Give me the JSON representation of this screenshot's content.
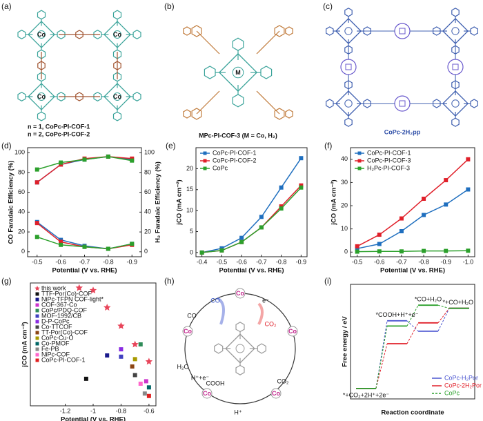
{
  "figure": {
    "panels": [
      "(a)",
      "(b)",
      "(c)",
      "(d)",
      "(e)",
      "(f)",
      "(g)",
      "(h)",
      "(i)"
    ],
    "a": {
      "metal": "Co",
      "captions": [
        "n = 1, CoPc-PI-COF-1",
        "n = 2, CoPc-PI-COF-2"
      ]
    },
    "b": {
      "metal": "M",
      "caption": "MPc-PI-COF-3 (M = Co, H₂)"
    },
    "c": {
      "caption": "CoPc-2H₂pp"
    },
    "h": {
      "metal": "Co",
      "labels": [
        "CO",
        "e⁻",
        "CO₂",
        "H⁺+e⁻",
        "H₂O",
        "H⁺",
        "COOH",
        "CO₂",
        "CO"
      ]
    }
  },
  "chart_data": [
    {
      "type": "line",
      "x_label": "Potential (V vs. RHE)",
      "y_label": "CO Faradaic Efficiency (%)",
      "y2_label": "H₂ Faradaic Efficiency (%)",
      "x": [
        -0.5,
        -0.6,
        -0.7,
        -0.8,
        -0.9
      ],
      "xlim": [
        -0.46,
        -0.94
      ],
      "xticks": [
        -0.5,
        -0.6,
        -0.7,
        -0.8,
        -0.9
      ],
      "ylim": [
        -5,
        105
      ],
      "yticks": [
        0,
        20,
        40,
        60,
        80,
        100
      ],
      "y2lim": [
        -5,
        105
      ],
      "y2ticks": [
        0,
        20,
        40,
        60,
        80,
        100
      ],
      "series": [
        {
          "color": "#1f6fbf",
          "values": [
            70,
            88,
            93,
            96,
            93
          ]
        },
        {
          "color": "#e0202a",
          "values": [
            70,
            88,
            94,
            96,
            94
          ]
        },
        {
          "color": "#2ca02c",
          "values": [
            83,
            90,
            93,
            96,
            92
          ]
        },
        {
          "color": "#1f6fbf",
          "axis": "y2",
          "values": [
            30,
            12,
            6,
            3,
            8
          ]
        },
        {
          "color": "#e0202a",
          "axis": "y2",
          "values": [
            29,
            10,
            5,
            3,
            7
          ]
        },
        {
          "color": "#2ca02c",
          "axis": "y2",
          "values": [
            15,
            7,
            5,
            3,
            8
          ]
        }
      ]
    },
    {
      "type": "line",
      "x_label": "Potential (V vs. RHE)",
      "y_label": "jCO (mA cm⁻²)",
      "legend": "upper left",
      "x": [
        -0.4,
        -0.5,
        -0.6,
        -0.7,
        -0.8,
        -0.9
      ],
      "xlim": [
        -0.37,
        -0.93
      ],
      "xticks": [
        -0.4,
        -0.5,
        -0.6,
        -0.7,
        -0.8,
        -0.9
      ],
      "ylim": [
        -1,
        25
      ],
      "yticks": [
        0,
        5,
        10,
        15,
        20
      ],
      "series": [
        {
          "name": "CoPc-PI-COF-1",
          "color": "#1f6fbf",
          "values": [
            0,
            1,
            3.5,
            8.5,
            15.5,
            22.5
          ]
        },
        {
          "name": "CoPc-PI-COF-2",
          "color": "#e0202a",
          "values": [
            0,
            0.5,
            2.5,
            6,
            11,
            16
          ]
        },
        {
          "name": "CoPc",
          "color": "#2ca02c",
          "values": [
            0,
            0.5,
            2.5,
            6,
            10.5,
            15.5
          ]
        }
      ]
    },
    {
      "type": "line",
      "x_label": "Potential (V vs. RHE)",
      "y_label": "jCO (mA cm⁻²)",
      "legend": "upper left",
      "x": [
        -0.5,
        -0.6,
        -0.7,
        -0.8,
        -0.9,
        -1.0
      ],
      "xlim": [
        -0.47,
        -1.03
      ],
      "xticks": [
        -0.5,
        -0.6,
        -0.7,
        -0.8,
        -0.9,
        {
          "value": -1.0,
          "label": "-1.0"
        }
      ],
      "ylim": [
        -2,
        45
      ],
      "yticks": [
        0,
        10,
        20,
        30,
        40
      ],
      "series": [
        {
          "name": "CoPc-PI-COF-1",
          "color": "#1f6fbf",
          "values": [
            1.5,
            3.5,
            9,
            16,
            20.5,
            27
          ]
        },
        {
          "name": "CoPc-PI-COF-3",
          "color": "#e0202a",
          "values": [
            2.5,
            7.5,
            14.5,
            23,
            31,
            40
          ]
        },
        {
          "name": "H₂Pc-PI-COF-3",
          "color": "#2ca02c",
          "values": [
            0.2,
            0.3,
            0.3,
            0.5,
            0.5,
            0.6
          ]
        }
      ]
    },
    {
      "type": "scatter",
      "x_label": "Potential (V vs. RHE)",
      "y_label": "jCO (mA cm⁻²)",
      "legend": "upper left",
      "xlim": [
        -1.45,
        -0.55
      ],
      "xticks": [
        -1.2,
        -1.0,
        -0.8,
        -0.6
      ],
      "ylim": [
        0,
        100
      ],
      "series": [
        {
          "name": "this work",
          "color": "#e8455a",
          "marker": "star",
          "x": [
            -1.1,
            -1.0,
            -0.9,
            -0.8,
            -0.7,
            -0.6
          ],
          "values": [
            96,
            94,
            80,
            65,
            50,
            36
          ]
        },
        {
          "name": "TTF-Por(Co)-COF",
          "color": "#111111",
          "marker": "square",
          "x": [
            -1.05
          ],
          "values": [
            22
          ]
        },
        {
          "name": "NiPc-TFPN COF-light*",
          "color": "#1a1a8c",
          "marker": "square",
          "x": [
            -0.9
          ],
          "values": [
            41
          ]
        },
        {
          "name": "COF-367-Co",
          "color": "#cc33cc",
          "marker": "square",
          "x": [
            -0.62
          ],
          "values": [
            20
          ]
        },
        {
          "name": "CoPc/PDQ-COF",
          "color": "#2e8b57",
          "marker": "square",
          "x": [
            -0.66
          ],
          "values": [
            50
          ]
        },
        {
          "name": "MOF-1992/CB",
          "color": "#4040c0",
          "marker": "square",
          "x": [
            -0.8
          ],
          "values": [
            40
          ]
        },
        {
          "name": "D-P-CoPc",
          "color": "#8a2be2",
          "marker": "square",
          "x": [
            -0.8
          ],
          "values": [
            46
          ]
        },
        {
          "name": "Co-TTCOF",
          "color": "#444444",
          "marker": "square",
          "x": [
            -0.7
          ],
          "values": [
            25
          ]
        },
        {
          "name": "TT-Por(Co)-COF",
          "color": "#8b4513",
          "marker": "square",
          "x": [
            -0.72
          ],
          "values": [
            32
          ]
        },
        {
          "name": "CoPc-Cu-O",
          "color": "#a89a00",
          "marker": "square",
          "x": [
            -0.7
          ],
          "values": [
            38
          ]
        },
        {
          "name": "Co-PMOF",
          "color": "#006666",
          "marker": "square",
          "x": [
            -0.6
          ],
          "values": [
            15
          ]
        },
        {
          "name": "Fe-PB",
          "color": "#888888",
          "marker": "square",
          "x": [
            -0.63
          ],
          "values": [
            10
          ]
        },
        {
          "name": "NiPc-COF",
          "color": "#ff66cc",
          "marker": "square",
          "x": [
            -0.66
          ],
          "values": [
            18
          ]
        },
        {
          "name": "CoPc-PI-COF-1",
          "color": "#e02020",
          "marker": "square",
          "x": [
            -0.6
          ],
          "values": [
            8
          ]
        }
      ]
    },
    {
      "type": "step",
      "x_label": "Reaction coordinate",
      "y_label": "Free energy / eV",
      "legend": "lower right",
      "categories": [
        "*+CO₂+2H⁺+2e⁻",
        "*COOH+H⁺+e⁻",
        "*CO+H₂O",
        "*+CO+H₂O"
      ],
      "ylim": [
        -0.1,
        1.0
      ],
      "series": [
        {
          "name": "CoPc-H₂Por",
          "color": "#4a55d0",
          "values": [
            0,
            0.65,
            0.55,
            0.77
          ]
        },
        {
          "name": "CoPc-2H₂Por",
          "color": "#e0202a",
          "values": [
            0,
            0.43,
            0.63,
            0.77
          ]
        },
        {
          "name": "CoPc",
          "color": "#2ca02c",
          "values": [
            0,
            0.6,
            0.8,
            0.77
          ]
        }
      ]
    }
  ]
}
